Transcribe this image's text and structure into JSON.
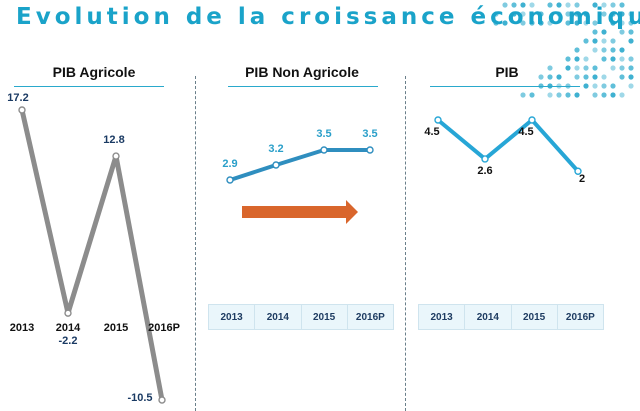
{
  "title": "Evolution de la croissance économique",
  "chart_data": [
    {
      "type": "line",
      "title": "PIB Agricole",
      "categories": [
        "2013",
        "2014",
        "2015",
        "2016P"
      ],
      "values": [
        17.2,
        -2.2,
        12.8,
        -10.5
      ],
      "value_labels": [
        "17.2",
        "-2.2",
        "12.8",
        "-10.5"
      ],
      "color": "#8c8c8c",
      "label_color": "#1a3a63"
    },
    {
      "type": "line",
      "title": "PIB Non Agricole",
      "categories": [
        "2013",
        "2014",
        "2015",
        "2016P"
      ],
      "values": [
        2.9,
        3.2,
        3.5,
        3.5
      ],
      "value_labels": [
        "2.9",
        "3.2",
        "3.5",
        "3.5"
      ],
      "color": "#2f8ebf",
      "label_color": "#2a9fc9",
      "arrow_color": "#d9662c"
    },
    {
      "type": "line",
      "title": "PIB",
      "categories": [
        "2013",
        "2014",
        "2015",
        "2016P"
      ],
      "values": [
        4.5,
        2.6,
        4.5,
        2
      ],
      "value_labels": [
        "4.5",
        "2.6",
        "4.5",
        "2"
      ],
      "color": "#27a6d6",
      "label_color": "#111111"
    }
  ]
}
